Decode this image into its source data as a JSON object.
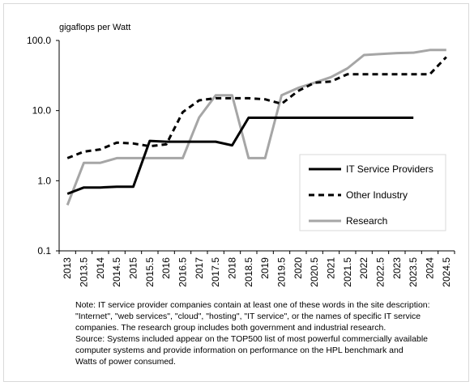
{
  "chart_data": {
    "type": "line",
    "ylabel": "gigaflops per Watt",
    "yscale": "log",
    "ylim": [
      0.1,
      100
    ],
    "yticks": [
      "100.0",
      "10.0",
      "1.0",
      "0.1"
    ],
    "x": [
      "2013",
      "2013.5",
      "2014",
      "2014.5",
      "2015",
      "2015.5",
      "2016",
      "2016.5",
      "2017",
      "2017.5",
      "2018",
      "2018.5",
      "2019",
      "2019.5",
      "2020",
      "2020.5",
      "2021",
      "2021.5",
      "2022",
      "2022.5",
      "2023",
      "2023.5",
      "2024",
      "2024.5"
    ],
    "grid": false,
    "legend_position": "right",
    "series": [
      {
        "name": "IT Service Providers",
        "color": "#000000",
        "style": "solid",
        "values": [
          0.65,
          0.8,
          0.8,
          0.82,
          0.82,
          3.7,
          3.6,
          3.6,
          3.6,
          3.6,
          3.2,
          7.9,
          7.9,
          7.9,
          7.9,
          7.9,
          7.9,
          7.9,
          7.9,
          7.9,
          7.9,
          7.9,
          null,
          null
        ]
      },
      {
        "name": "Other Industry",
        "color": "#000000",
        "style": "dashed",
        "values": [
          2.1,
          2.6,
          2.8,
          3.5,
          3.4,
          3.1,
          3.3,
          9.5,
          14,
          15,
          15,
          15,
          14.5,
          12.5,
          19,
          25,
          26,
          33,
          33,
          33,
          33,
          33,
          33,
          58
        ]
      },
      {
        "name": "Research",
        "color": "#a6a6a6",
        "style": "solid",
        "values": [
          0.45,
          1.8,
          1.8,
          2.1,
          2.1,
          2.1,
          2.1,
          2.1,
          8,
          16.5,
          16.5,
          2.1,
          2.1,
          16.5,
          21,
          25,
          30,
          40,
          62,
          64,
          66,
          67,
          73,
          73
        ]
      }
    ]
  },
  "note": {
    "lines": [
      "Note:  IT service provider companies contain at least one of these words in the site description:",
      "\"Internet\", \"web services\", \"cloud\", \"hosting\", \"IT service\", or the names of specific IT service",
      "companies.  The research group includes both government and industrial research.",
      "Source:  Systems included appear on the TOP500 list of most powerful commercially available",
      "computer systems and provide information on performance on the HPL benchmark and",
      "Watts of power consumed."
    ]
  }
}
